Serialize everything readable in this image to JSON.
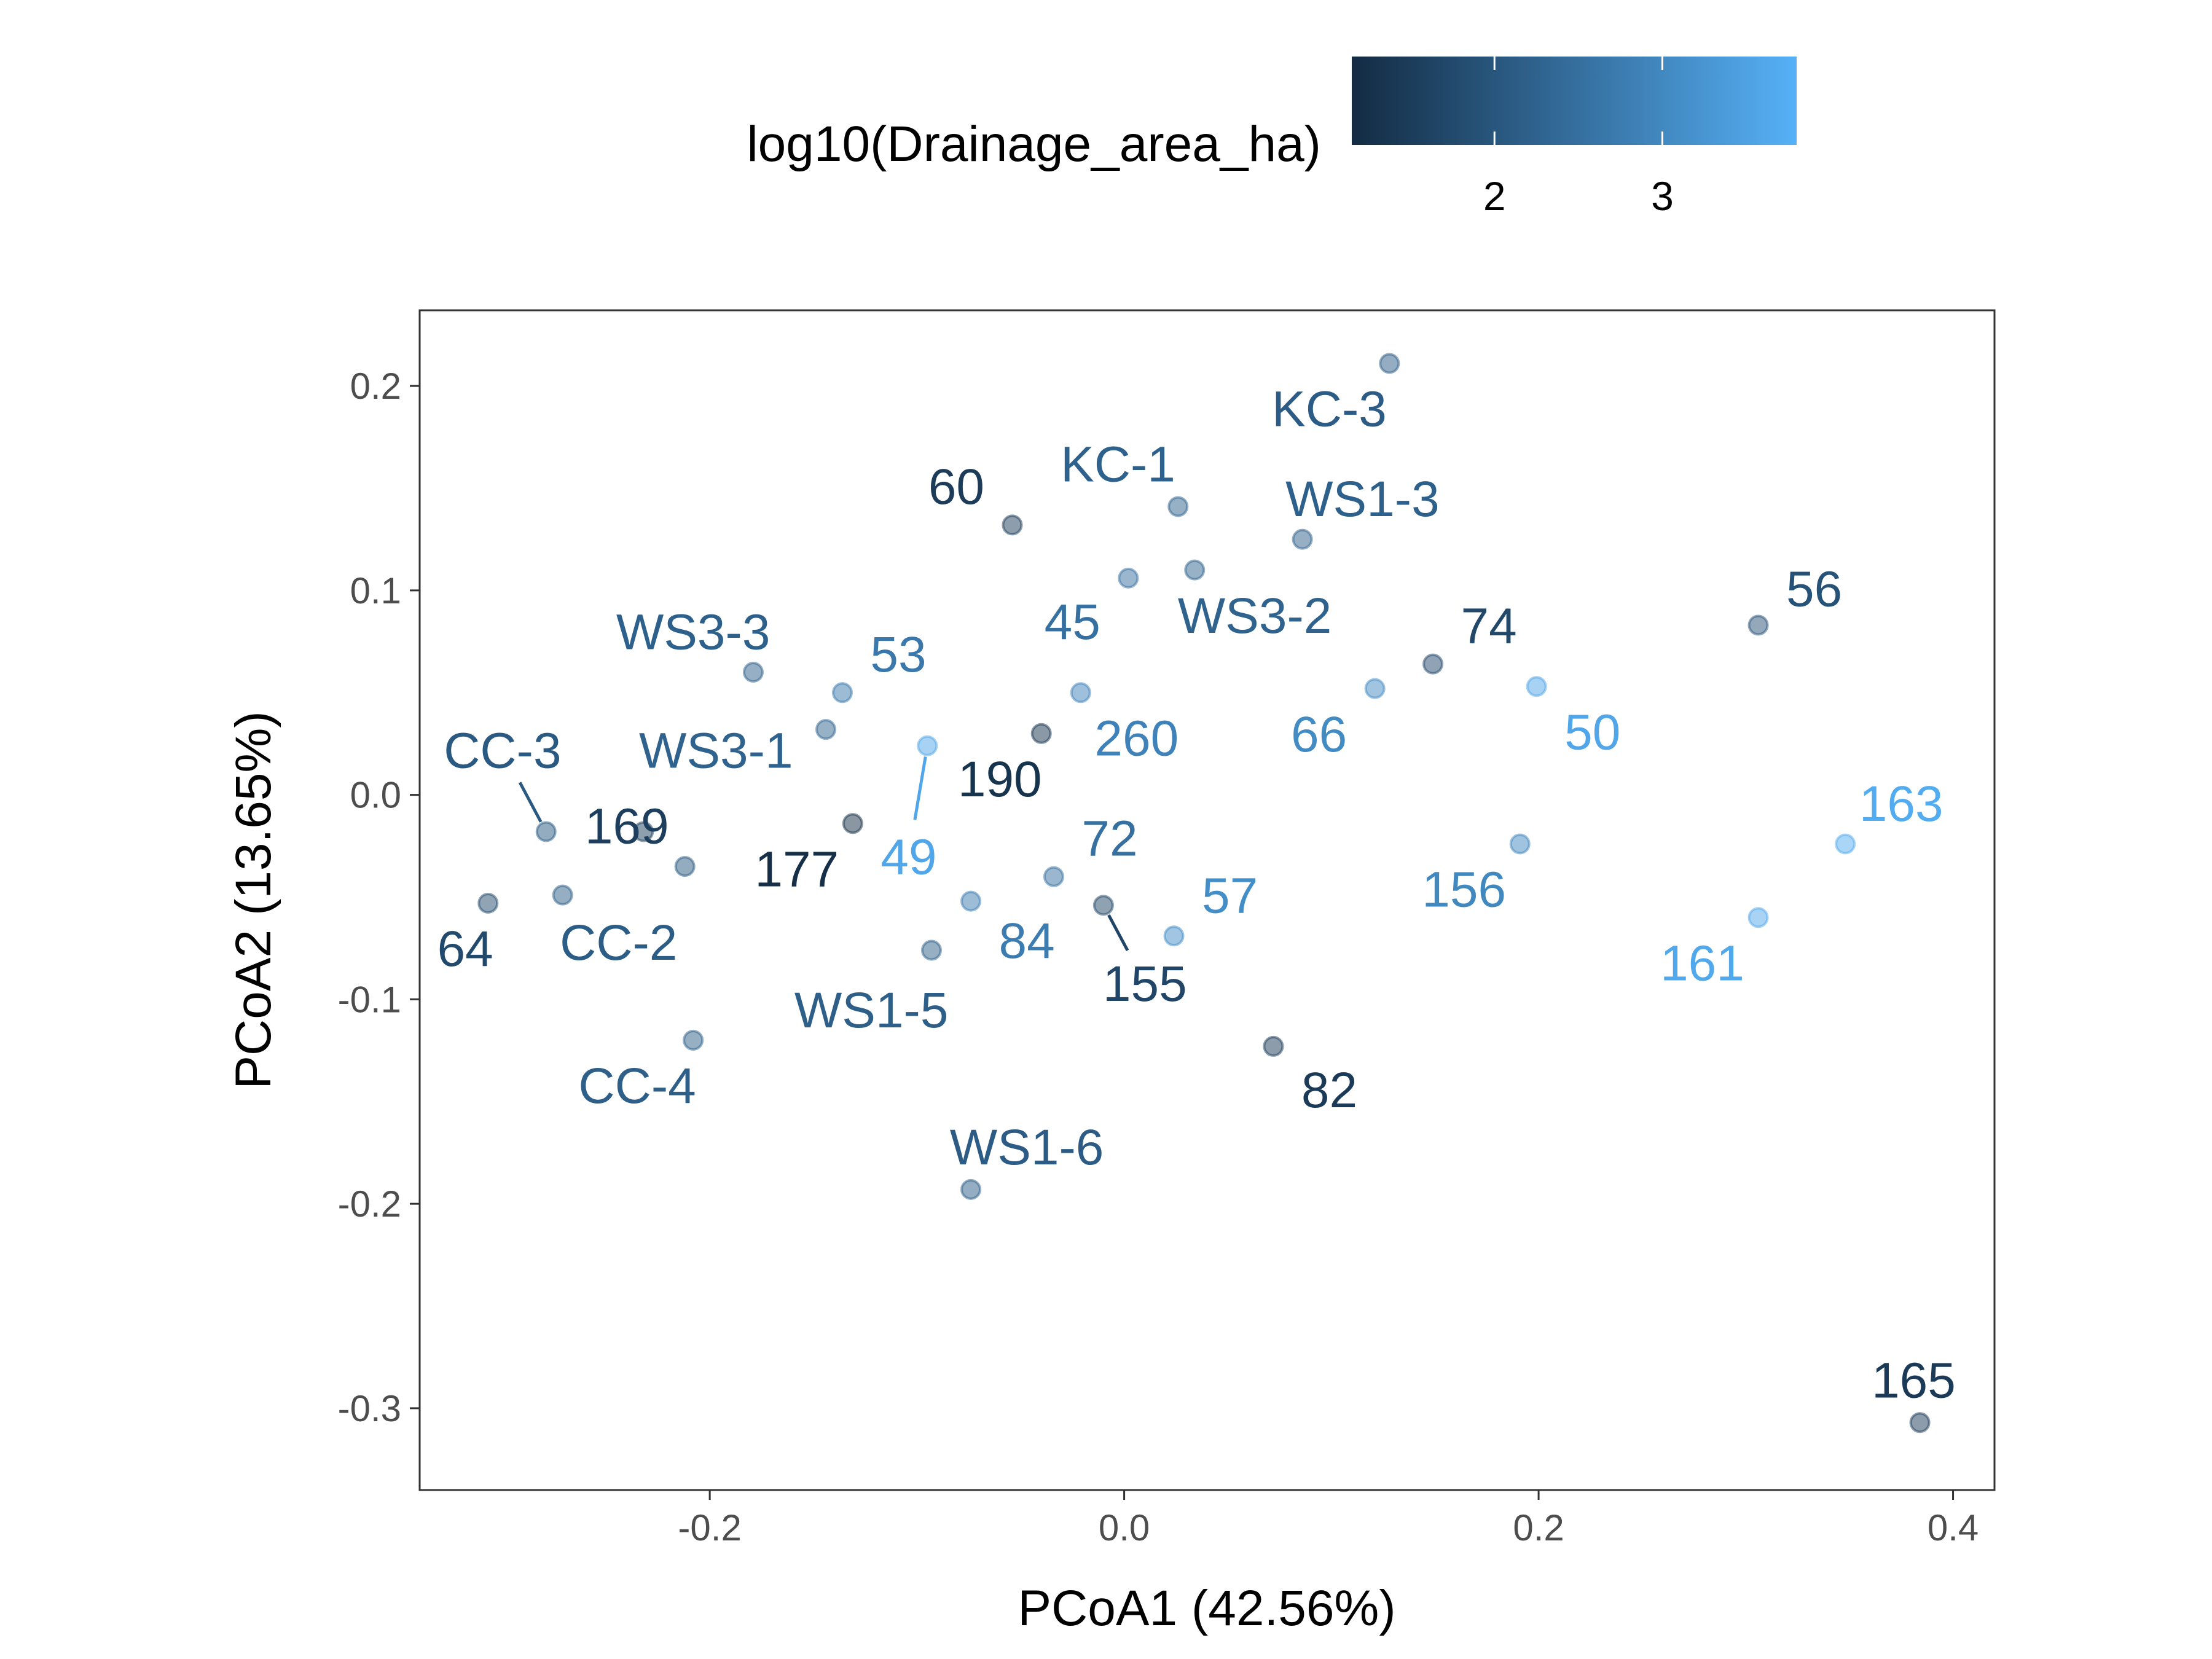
{
  "chart_data": {
    "type": "scatter",
    "xlabel": "PCoA1 (42.56%)",
    "ylabel": "PCoA2 (13.65%)",
    "xlim": [
      -0.34,
      0.42
    ],
    "ylim": [
      -0.34,
      0.237
    ],
    "x_ticks": [
      -0.2,
      0.0,
      0.2,
      0.4
    ],
    "x_tick_labels": [
      "-0.2",
      "0.0",
      "0.2",
      "0.4"
    ],
    "y_ticks": [
      -0.3,
      -0.2,
      -0.1,
      0.0,
      0.1,
      0.2
    ],
    "y_tick_labels": [
      "-0.3",
      "-0.2",
      "-0.1",
      "0.0",
      "0.1",
      "0.2"
    ],
    "grid": false,
    "legend": {
      "title": "log10(Drainage_area_ha)",
      "position": "top",
      "type": "colorbar",
      "min": 1.15,
      "max": 3.8,
      "ticks": [
        2,
        3
      ],
      "tick_labels": [
        "2",
        "3"
      ],
      "low_color": "#132b43",
      "high_color": "#56b1f7"
    },
    "points": [
      {
        "label": "KC-3",
        "x": 0.128,
        "y": 0.211,
        "value": 2.12,
        "lx": 0.099,
        "ly": 0.189
      },
      {
        "label": "KC-1",
        "x": 0.026,
        "y": 0.141,
        "value": 2.23,
        "lx": -0.003,
        "ly": 0.162
      },
      {
        "label": "60",
        "x": -0.054,
        "y": 0.132,
        "value": 1.49,
        "lx": -0.081,
        "ly": 0.151
      },
      {
        "label": "WS1-3",
        "x": 0.086,
        "y": 0.125,
        "value": 2.19,
        "lx": 0.115,
        "ly": 0.145
      },
      {
        "label": "WS3-2",
        "x": 0.034,
        "y": 0.11,
        "value": 2.25,
        "lx": 0.063,
        "ly": 0.088
      },
      {
        "label": "45",
        "x": 0.002,
        "y": 0.106,
        "value": 2.52,
        "lx": -0.025,
        "ly": 0.085
      },
      {
        "label": "74",
        "x": 0.149,
        "y": 0.064,
        "value": 1.71,
        "lx": 0.176,
        "ly": 0.083
      },
      {
        "label": "56",
        "x": 0.306,
        "y": 0.083,
        "value": 1.93,
        "lx": 333,
        "ly": 0.101
      },
      {
        "label": "WS3-3",
        "x": -0.179,
        "y": 0.06,
        "value": 2.19,
        "lx": -0.208,
        "ly": 0.08
      },
      {
        "label": "53",
        "x": -0.136,
        "y": 0.05,
        "value": 2.68,
        "lx": -0.109,
        "ly": 0.069
      },
      {
        "label": "66",
        "x": 0.121,
        "y": 0.052,
        "value": 3.04,
        "lx": 0.094,
        "ly": 0.03
      },
      {
        "label": "50",
        "x": 0.199,
        "y": 0.053,
        "value": 3.58,
        "lx": 0.226,
        "ly": 0.031
      },
      {
        "label": "260",
        "x": -0.021,
        "y": 0.05,
        "value": 2.88,
        "lx": 0.006,
        "ly": 0.028
      },
      {
        "label": "WS3-1",
        "x": -0.144,
        "y": 0.032,
        "value": 2.25,
        "lx": -0.197,
        "ly": 0.022
      },
      {
        "label": "190",
        "x": -0.04,
        "y": 0.03,
        "value": 1.32,
        "lx": -0.06,
        "ly": 0.008
      },
      {
        "label": "49",
        "x": -0.095,
        "y": 0.024,
        "value": 3.58,
        "lx": -0.104,
        "ly": -0.03,
        "leader": true
      },
      {
        "label": "CC-3",
        "x": -0.279,
        "y": -0.018,
        "value": 2.06,
        "lx": -0.3,
        "ly": 0.022,
        "leader": true
      },
      {
        "label": "169",
        "x": -0.232,
        "y": -0.018,
        "value": 1.54,
        "lx": -0.24,
        "ly": -0.015,
        "nopoint": true
      },
      {
        "label": "177",
        "x": -0.131,
        "y": -0.014,
        "value": 1.23,
        "lx": -0.158,
        "ly": -0.036
      },
      {
        "label": "",
        "x": -0.212,
        "y": -0.035,
        "value": 2.07
      },
      {
        "label": "72",
        "x": -0.034,
        "y": -0.04,
        "value": 2.52,
        "lx": -0.007,
        "ly": -0.021
      },
      {
        "label": "CC-2",
        "x": -0.271,
        "y": -0.049,
        "value": 2.14,
        "lx": -0.244,
        "ly": -0.072
      },
      {
        "label": "64",
        "x": -0.307,
        "y": -0.053,
        "value": 1.76,
        "lx": -0.318,
        "ly": -0.075
      },
      {
        "label": "84",
        "x": -0.074,
        "y": -0.052,
        "value": 2.76,
        "lx": -0.047,
        "ly": -0.071
      },
      {
        "label": "155",
        "x": -0.01,
        "y": -0.054,
        "value": 1.67,
        "lx": 0.01,
        "ly": -0.092,
        "leader": true
      },
      {
        "label": "57",
        "x": 0.024,
        "y": -0.069,
        "value": 3.1,
        "lx": 0.051,
        "ly": -0.049
      },
      {
        "label": "WS1-5",
        "x": -0.093,
        "y": -0.076,
        "value": 2.17,
        "lx": -0.122,
        "ly": -0.105
      },
      {
        "label": "156",
        "x": 0.191,
        "y": -0.024,
        "value": 2.98,
        "lx": 0.164,
        "ly": -0.046
      },
      {
        "label": "163",
        "x": 0.348,
        "y": -0.024,
        "value": 3.7,
        "lx": 0.375,
        "ly": -0.004
      },
      {
        "label": "161",
        "x": 0.306,
        "y": -0.06,
        "value": 3.62,
        "lx": 0.279,
        "ly": -0.082
      },
      {
        "label": "CC-4",
        "x": -0.208,
        "y": -0.12,
        "value": 2.17,
        "lx": -0.235,
        "ly": -0.142
      },
      {
        "label": "82",
        "x": 0.072,
        "y": -0.123,
        "value": 1.45,
        "lx": 0.099,
        "ly": -0.144
      },
      {
        "label": "WS1-6",
        "x": -0.074,
        "y": -0.193,
        "value": 2.12,
        "lx": -0.047,
        "ly": -0.172
      },
      {
        "label": "165",
        "x": 0.384,
        "y": -0.307,
        "value": 1.45,
        "lx": 0.381,
        "ly": -0.286
      }
    ]
  }
}
